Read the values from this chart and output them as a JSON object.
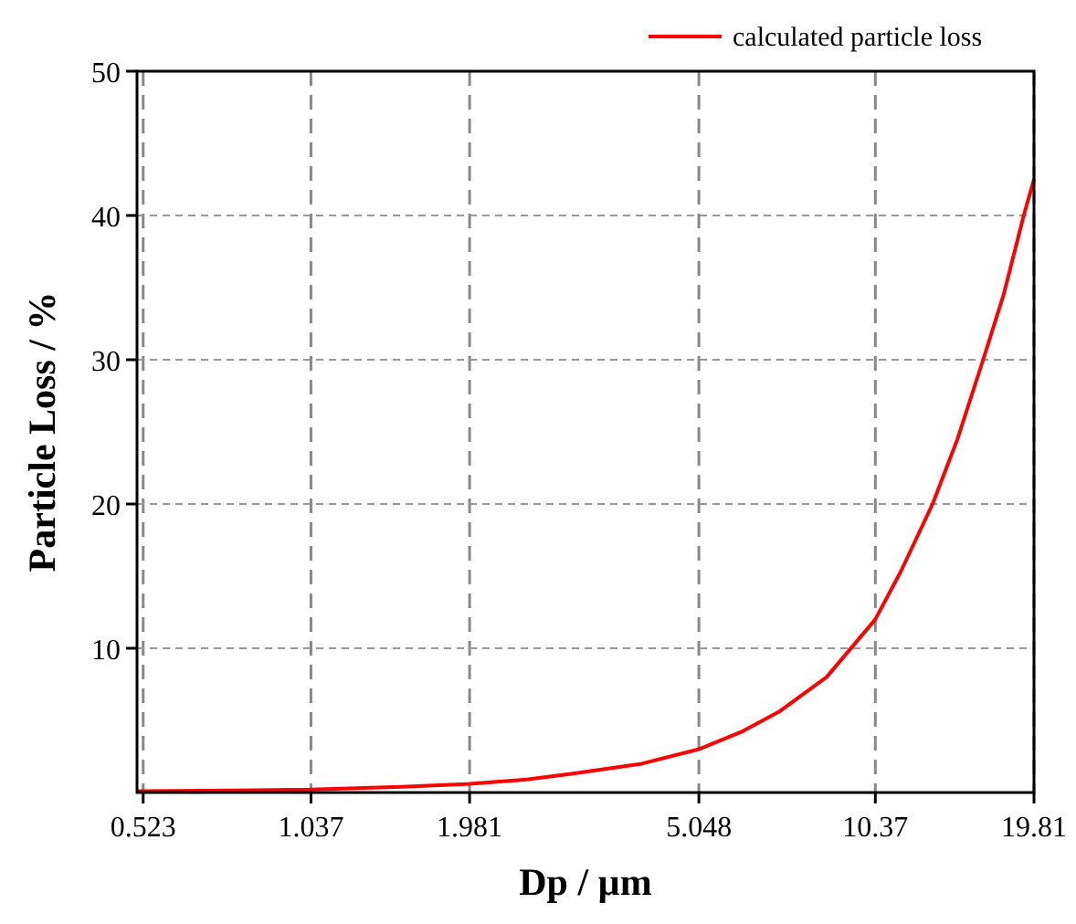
{
  "chart_data": {
    "type": "line",
    "xlabel": "Dp / µm",
    "ylabel": "Particle Loss / %",
    "log": "x",
    "xlim": [
      0.51,
      19.81
    ],
    "xticks": [
      0.523,
      1.037,
      1.981,
      5.048,
      10.37,
      19.81
    ],
    "ylim": [
      0,
      50
    ],
    "yticks": [
      10,
      20,
      30,
      40,
      50
    ],
    "grid": true,
    "legend": "top right",
    "line_style": "solid",
    "series": [
      {
        "name": "calculated particle loss",
        "color": "#ff0000",
        "x": [
          0.51,
          0.523,
          0.75,
          1.037,
          1.5,
          1.981,
          2.5,
          3,
          4,
          5.048,
          6,
          7,
          8.5,
          10.37,
          11.5,
          13.1,
          14.5,
          16.1,
          17.5,
          19,
          19.81
        ],
        "values": [
          0.1,
          0.1,
          0.15,
          0.2,
          0.4,
          0.6,
          0.9,
          1.3,
          2,
          3,
          4.2,
          5.6,
          8,
          12,
          15.3,
          20,
          24.5,
          30,
          34.5,
          40,
          42.5
        ]
      }
    ]
  }
}
